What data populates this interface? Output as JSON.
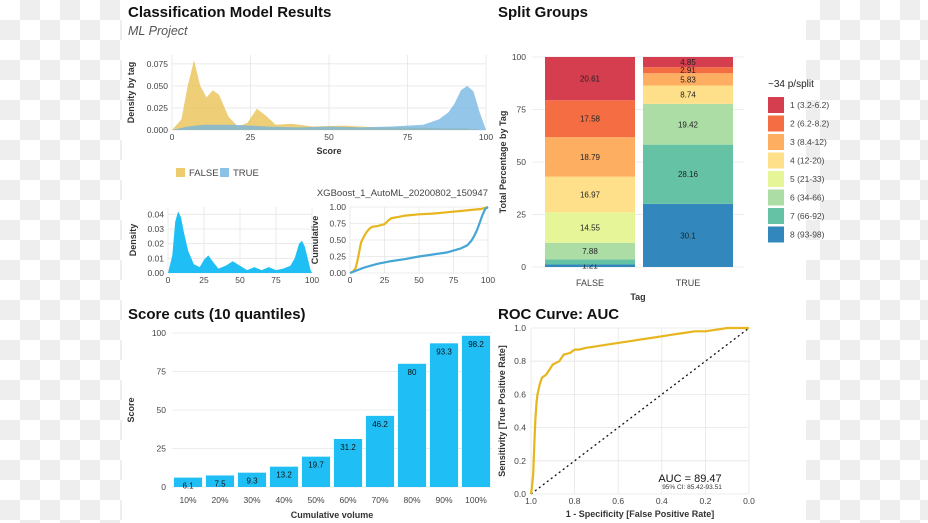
{
  "titles": {
    "main": "Classification Model Results",
    "subtitle": "ML Project",
    "split": "Split Groups",
    "cuts": "Score cuts (10 quantiles)",
    "roc": "ROC Curve: AUC"
  },
  "colors": {
    "false_density": "#E8BF4B",
    "true_density": "#6FB3E0",
    "density_fill": "#1FBFF5",
    "cum_false": "#E7B51E",
    "cum_true": "#45A6D6",
    "bars": "#1FBFF5",
    "roc": "#E7B51E"
  },
  "chart_data": [
    {
      "id": "density_by_tag",
      "type": "area",
      "xlabel": "Score",
      "ylabel": "Density by tag",
      "xlim": [
        0,
        100
      ],
      "ylim": [
        0,
        0.085
      ],
      "xticks": [
        0,
        25,
        50,
        75,
        100
      ],
      "yticks": [
        0,
        0.025,
        0.05,
        0.075
      ],
      "yticklabels": [
        "0.000",
        "0.025",
        "0.050",
        "0.075"
      ],
      "legend_position": "bottom",
      "series": [
        {
          "name": "FALSE",
          "x": [
            0,
            3,
            5,
            7,
            9,
            11,
            13,
            15,
            18,
            21,
            24,
            27,
            30,
            33,
            38,
            45,
            55,
            65,
            75,
            85,
            90,
            93,
            96,
            100
          ],
          "y": [
            0,
            0.012,
            0.05,
            0.079,
            0.05,
            0.037,
            0.045,
            0.04,
            0.015,
            0.004,
            0.008,
            0.024,
            0.016,
            0.006,
            0.007,
            0.004,
            0.005,
            0.003,
            0.003,
            0.002,
            0.002,
            0.002,
            0.001,
            0
          ]
        },
        {
          "name": "TRUE",
          "x": [
            0,
            5,
            10,
            20,
            30,
            40,
            50,
            60,
            70,
            80,
            85,
            88,
            90,
            92,
            94,
            96,
            98,
            100
          ],
          "y": [
            0,
            0.004,
            0.006,
            0.006,
            0.004,
            0.003,
            0.004,
            0.003,
            0.004,
            0.006,
            0.012,
            0.02,
            0.03,
            0.045,
            0.05,
            0.044,
            0.02,
            0
          ]
        }
      ]
    },
    {
      "id": "overall_density",
      "type": "area",
      "xlabel": "",
      "ylabel": "Density",
      "xlim": [
        0,
        100
      ],
      "ylim": [
        0,
        0.045
      ],
      "xticks": [
        0,
        25,
        50,
        75,
        100
      ],
      "xticklabels": [
        "0",
        "25",
        "50",
        "75",
        "100"
      ],
      "yticks": [
        0,
        0.01,
        0.02,
        0.03,
        0.04
      ],
      "yticklabels": [
        "0.00",
        "0.01",
        "0.02",
        "0.03",
        "0.04"
      ],
      "series": [
        {
          "x": [
            0,
            3,
            5,
            7,
            9,
            11,
            14,
            18,
            22,
            25,
            28,
            31,
            35,
            40,
            45,
            50,
            55,
            60,
            65,
            70,
            75,
            80,
            85,
            88,
            91,
            93,
            95,
            97,
            99,
            100
          ],
          "y": [
            0,
            0.012,
            0.035,
            0.042,
            0.038,
            0.028,
            0.015,
            0.006,
            0.004,
            0.009,
            0.012,
            0.008,
            0.003,
            0.005,
            0.008,
            0.005,
            0.002,
            0.004,
            0.002,
            0.004,
            0.002,
            0.003,
            0.005,
            0.01,
            0.02,
            0.022,
            0.018,
            0.01,
            0.002,
            0
          ]
        }
      ]
    },
    {
      "id": "cumulative",
      "type": "line",
      "title": "XGBoost_1_AutoML_20200802_150947",
      "xlabel": "",
      "ylabel": "Cumulative",
      "xlim": [
        0,
        100
      ],
      "ylim": [
        0,
        1
      ],
      "xticks": [
        0,
        25,
        50,
        75,
        100
      ],
      "yticks": [
        0,
        0.25,
        0.5,
        0.75,
        1
      ],
      "yticklabels": [
        "0.00",
        "0.25",
        "0.50",
        "0.75",
        "1.00"
      ],
      "series": [
        {
          "name": "FALSE",
          "x": [
            0,
            2,
            4,
            5,
            6,
            7,
            8,
            10,
            12,
            14,
            16,
            20,
            25,
            28,
            30,
            35,
            40,
            50,
            60,
            70,
            80,
            90,
            95,
            100
          ],
          "y": [
            0,
            0.02,
            0.07,
            0.15,
            0.25,
            0.36,
            0.46,
            0.55,
            0.62,
            0.67,
            0.7,
            0.71,
            0.74,
            0.8,
            0.83,
            0.85,
            0.87,
            0.89,
            0.9,
            0.92,
            0.94,
            0.96,
            0.97,
            1
          ]
        },
        {
          "name": "TRUE",
          "x": [
            0,
            5,
            10,
            15,
            20,
            25,
            30,
            40,
            50,
            60,
            70,
            75,
            80,
            85,
            88,
            90,
            92,
            94,
            96,
            98,
            100
          ],
          "y": [
            0,
            0.04,
            0.08,
            0.11,
            0.14,
            0.16,
            0.18,
            0.21,
            0.25,
            0.28,
            0.31,
            0.34,
            0.37,
            0.42,
            0.49,
            0.56,
            0.65,
            0.76,
            0.88,
            0.97,
            1
          ]
        }
      ]
    },
    {
      "id": "split_groups",
      "type": "bar",
      "stacked": true,
      "xlabel": "Tag",
      "ylabel": "Total Percentage by Tag",
      "categories": [
        "FALSE",
        "TRUE"
      ],
      "ylim": [
        0,
        100
      ],
      "yticks": [
        0,
        25,
        50,
        75,
        100
      ],
      "legend_title": "~34 p/split",
      "legend_position": "right",
      "series": [
        {
          "name": "1 (3.2-6.2)",
          "values": [
            20.61,
            4.85
          ],
          "color": "#D53E4F"
        },
        {
          "name": "2 (6.2-8.2)",
          "values": [
            17.58,
            2.91
          ],
          "color": "#F46D43"
        },
        {
          "name": "3 (8.4-12)",
          "values": [
            18.79,
            5.83
          ],
          "color": "#FDAE61"
        },
        {
          "name": "4 (12-20)",
          "values": [
            16.97,
            8.74
          ],
          "color": "#FEE08B"
        },
        {
          "name": "5 (21-33)",
          "values": [
            14.55,
            0
          ],
          "color": "#E6F598"
        },
        {
          "name": "6 (34-66)",
          "values": [
            7.88,
            19.42
          ],
          "color": "#ABDDA4"
        },
        {
          "name": "7 (66-92)",
          "values": [
            2.42,
            28.16
          ],
          "color": "#66C2A5"
        },
        {
          "name": "8 (93-98)",
          "values": [
            1.21,
            30.1
          ],
          "color": "#3288BD"
        }
      ],
      "labels": [
        [
          "20.61",
          "4.85"
        ],
        [
          "17.58",
          "2.91"
        ],
        [
          "18.79",
          "5.83"
        ],
        [
          "16.97",
          "8.74"
        ],
        [
          "14.55",
          ""
        ],
        [
          "7.88",
          "19.42"
        ],
        [
          "",
          "28.16"
        ],
        [
          "1.21",
          "30.1"
        ]
      ]
    },
    {
      "id": "score_cuts",
      "type": "bar",
      "xlabel": "Cumulative volume",
      "ylabel": "Score",
      "categories": [
        "10%",
        "20%",
        "30%",
        "40%",
        "50%",
        "60%",
        "70%",
        "80%",
        "90%",
        "100%"
      ],
      "values": [
        6.1,
        7.5,
        9.3,
        13.2,
        19.7,
        31.2,
        46.2,
        80,
        93.3,
        98.2
      ],
      "value_labels": [
        "6.1",
        "7.5",
        "9.3",
        "13.2",
        "19.7",
        "31.2",
        "46.2",
        "80",
        "93.3",
        "98.2"
      ],
      "ylim": [
        0,
        100
      ],
      "yticks": [
        0,
        25,
        50,
        75,
        100
      ]
    },
    {
      "id": "roc",
      "type": "line",
      "xlabel": "1 - Specificity [False Positive Rate]",
      "ylabel": "Sensitivity [True Positive Rate]",
      "xlim": [
        1,
        0
      ],
      "ylim": [
        0,
        1
      ],
      "xticks": [
        1,
        0.8,
        0.6,
        0.4,
        0.2,
        0
      ],
      "xticklabels": [
        "1.0",
        "0.8",
        "0.6",
        "0.4",
        "0.2",
        "0.0"
      ],
      "yticks": [
        0,
        0.2,
        0.4,
        0.6,
        0.8,
        1
      ],
      "yticklabels": [
        "0.0",
        "0.2",
        "0.4",
        "0.6",
        "0.8",
        "1.0"
      ],
      "annotation": "AUC = 89.47",
      "annotation_ci": "95% CI: 85.42-93.51",
      "series": [
        {
          "x": [
            1,
            0.995,
            0.99,
            0.985,
            0.98,
            0.975,
            0.97,
            0.96,
            0.95,
            0.93,
            0.9,
            0.87,
            0.85,
            0.82,
            0.8,
            0.78,
            0.75,
            0.7,
            0.65,
            0.6,
            0.55,
            0.5,
            0.45,
            0.4,
            0.35,
            0.3,
            0.25,
            0.2,
            0.15,
            0.1,
            0.05,
            0
          ],
          "y": [
            0,
            0.05,
            0.12,
            0.3,
            0.45,
            0.55,
            0.6,
            0.66,
            0.7,
            0.72,
            0.78,
            0.8,
            0.84,
            0.85,
            0.87,
            0.87,
            0.88,
            0.89,
            0.9,
            0.91,
            0.92,
            0.93,
            0.94,
            0.95,
            0.96,
            0.97,
            0.98,
            0.98,
            0.99,
            1,
            1,
            1
          ]
        }
      ],
      "reference": {
        "x": [
          1,
          0
        ],
        "y": [
          0,
          1
        ]
      }
    }
  ]
}
